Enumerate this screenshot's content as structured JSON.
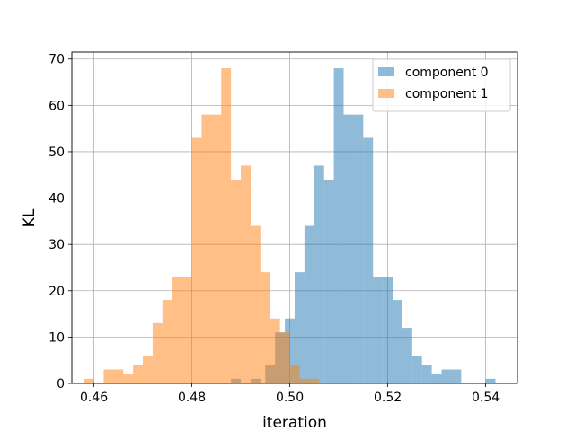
{
  "chart_data": {
    "type": "histogram",
    "title": "",
    "xlabel": "iteration",
    "ylabel": "KL",
    "xlim": [
      0.4555,
      0.5465
    ],
    "ylim": [
      0,
      71.5
    ],
    "xticks": [
      0.46,
      0.48,
      0.5,
      0.52,
      0.54
    ],
    "xtick_labels": [
      "0.46",
      "0.48",
      "0.50",
      "0.52",
      "0.54"
    ],
    "yticks": [
      0,
      10,
      20,
      30,
      40,
      50,
      60,
      70
    ],
    "ytick_labels": [
      "0",
      "10",
      "20",
      "30",
      "40",
      "50",
      "60",
      "70"
    ],
    "grid": true,
    "legend_position": "top-right",
    "series": [
      {
        "name": "component 0",
        "color": "#1f77b4",
        "alpha": 0.5,
        "bins": [
          {
            "x0": 0.488,
            "x1": 0.49,
            "count": 1
          },
          {
            "x0": 0.492,
            "x1": 0.494,
            "count": 1
          },
          {
            "x0": 0.495,
            "x1": 0.497,
            "count": 4
          },
          {
            "x0": 0.497,
            "x1": 0.499,
            "count": 11
          },
          {
            "x0": 0.499,
            "x1": 0.501,
            "count": 14
          },
          {
            "x0": 0.501,
            "x1": 0.503,
            "count": 24
          },
          {
            "x0": 0.503,
            "x1": 0.505,
            "count": 34
          },
          {
            "x0": 0.505,
            "x1": 0.507,
            "count": 47
          },
          {
            "x0": 0.507,
            "x1": 0.509,
            "count": 44
          },
          {
            "x0": 0.509,
            "x1": 0.511,
            "count": 68
          },
          {
            "x0": 0.511,
            "x1": 0.513,
            "count": 58
          },
          {
            "x0": 0.513,
            "x1": 0.515,
            "count": 58
          },
          {
            "x0": 0.515,
            "x1": 0.517,
            "count": 53
          },
          {
            "x0": 0.517,
            "x1": 0.519,
            "count": 23
          },
          {
            "x0": 0.519,
            "x1": 0.521,
            "count": 23
          },
          {
            "x0": 0.521,
            "x1": 0.523,
            "count": 18
          },
          {
            "x0": 0.523,
            "x1": 0.525,
            "count": 12
          },
          {
            "x0": 0.525,
            "x1": 0.527,
            "count": 6
          },
          {
            "x0": 0.527,
            "x1": 0.529,
            "count": 4
          },
          {
            "x0": 0.529,
            "x1": 0.531,
            "count": 2
          },
          {
            "x0": 0.531,
            "x1": 0.533,
            "count": 3
          },
          {
            "x0": 0.533,
            "x1": 0.535,
            "count": 3
          },
          {
            "x0": 0.54,
            "x1": 0.542,
            "count": 1
          }
        ]
      },
      {
        "name": "component 1",
        "color": "#ff7f0e",
        "alpha": 0.5,
        "bins": [
          {
            "x0": 0.458,
            "x1": 0.46,
            "count": 1
          },
          {
            "x0": 0.462,
            "x1": 0.464,
            "count": 3
          },
          {
            "x0": 0.464,
            "x1": 0.466,
            "count": 3
          },
          {
            "x0": 0.466,
            "x1": 0.468,
            "count": 2
          },
          {
            "x0": 0.468,
            "x1": 0.47,
            "count": 4
          },
          {
            "x0": 0.47,
            "x1": 0.472,
            "count": 6
          },
          {
            "x0": 0.472,
            "x1": 0.474,
            "count": 13
          },
          {
            "x0": 0.474,
            "x1": 0.476,
            "count": 18
          },
          {
            "x0": 0.476,
            "x1": 0.478,
            "count": 23
          },
          {
            "x0": 0.478,
            "x1": 0.48,
            "count": 23
          },
          {
            "x0": 0.48,
            "x1": 0.482,
            "count": 53
          },
          {
            "x0": 0.482,
            "x1": 0.484,
            "count": 58
          },
          {
            "x0": 0.484,
            "x1": 0.486,
            "count": 58
          },
          {
            "x0": 0.486,
            "x1": 0.488,
            "count": 68
          },
          {
            "x0": 0.488,
            "x1": 0.49,
            "count": 44
          },
          {
            "x0": 0.49,
            "x1": 0.492,
            "count": 47
          },
          {
            "x0": 0.492,
            "x1": 0.494,
            "count": 34
          },
          {
            "x0": 0.494,
            "x1": 0.496,
            "count": 24
          },
          {
            "x0": 0.496,
            "x1": 0.498,
            "count": 14
          },
          {
            "x0": 0.498,
            "x1": 0.5,
            "count": 11
          },
          {
            "x0": 0.5,
            "x1": 0.502,
            "count": 4
          },
          {
            "x0": 0.502,
            "x1": 0.504,
            "count": 1
          },
          {
            "x0": 0.504,
            "x1": 0.506,
            "count": 1
          }
        ]
      }
    ]
  }
}
